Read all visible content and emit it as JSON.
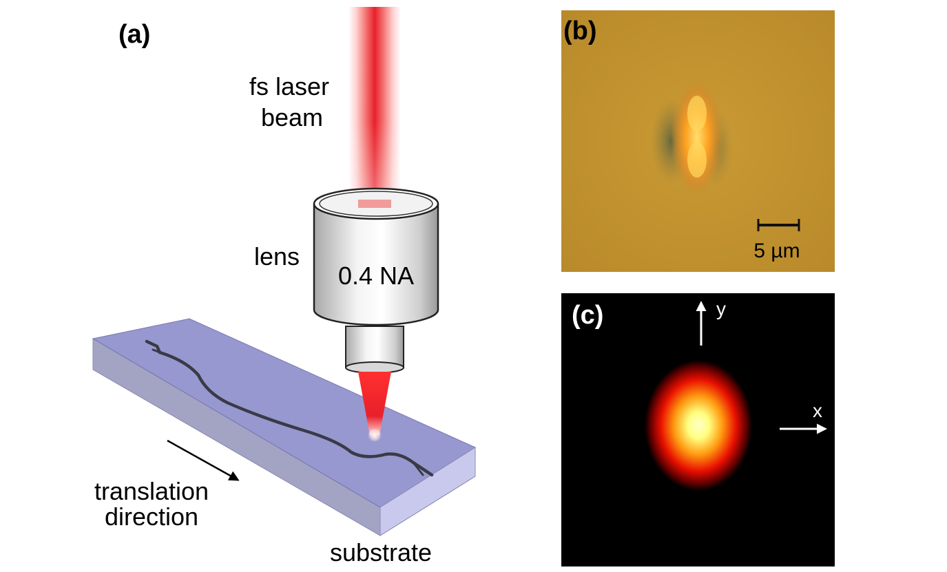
{
  "panels": {
    "a": {
      "label": "(a)",
      "beam_label_line1": "fs laser",
      "beam_label_line2": "beam",
      "lens_label": "lens",
      "lens_spec": "0.4 NA",
      "translation_line1": "translation",
      "translation_line2": "direction",
      "substrate_label": "substrate"
    },
    "b": {
      "label": "(b)",
      "scale_bar_text": "5 µm"
    },
    "c": {
      "label": "(c)",
      "axis_y": "y",
      "axis_x": "x"
    }
  },
  "colors": {
    "laser_red": "#e8202a",
    "substrate": "#8f8fd8",
    "microscope_bg": "#c4922c",
    "beam_profile_bg": "#000000"
  }
}
